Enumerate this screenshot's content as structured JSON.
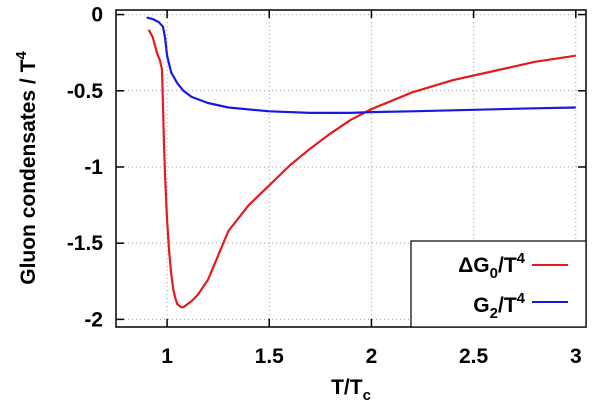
{
  "chart_data": {
    "type": "line",
    "xlabel": "T/T_c",
    "xlabel_main": "T/T",
    "xlabel_sub": "c",
    "ylabel": "Gluon condensates / T^4",
    "ylabel_main": "Gluon condensates / T",
    "ylabel_sup": "4",
    "xlim": [
      0.75,
      3.05
    ],
    "ylim": [
      -2.05,
      0.03
    ],
    "xticks": [
      1,
      1.5,
      2,
      2.5,
      3
    ],
    "xtick_labels": [
      "1",
      "1.5",
      "2",
      "2.5",
      "3"
    ],
    "yticks": [
      0,
      -0.5,
      -1,
      -1.5,
      -2
    ],
    "ytick_labels": [
      "0",
      "-0.5",
      "-1",
      "-1.5",
      "-2"
    ],
    "grid": true,
    "legend": "bottom-right",
    "series": [
      {
        "name": "ΔG0/T4",
        "label_parts": [
          "ΔG",
          "0",
          "/T",
          "4"
        ],
        "color": "#e41a1c",
        "x": [
          0.91,
          0.93,
          0.95,
          0.965,
          0.975,
          0.98,
          0.985,
          0.99,
          1.0,
          1.01,
          1.02,
          1.03,
          1.04,
          1.05,
          1.06,
          1.07,
          1.08,
          1.1,
          1.12,
          1.15,
          1.2,
          1.3,
          1.4,
          1.5,
          1.6,
          1.7,
          1.8,
          1.9,
          2.0,
          2.2,
          2.4,
          2.6,
          2.8,
          3.0
        ],
        "y": [
          -0.1,
          -0.15,
          -0.25,
          -0.3,
          -0.36,
          -0.6,
          -0.85,
          -1.05,
          -1.35,
          -1.55,
          -1.7,
          -1.8,
          -1.86,
          -1.9,
          -1.91,
          -1.92,
          -1.92,
          -1.9,
          -1.88,
          -1.84,
          -1.74,
          -1.42,
          -1.25,
          -1.12,
          -0.99,
          -0.88,
          -0.78,
          -0.69,
          -0.62,
          -0.51,
          -0.43,
          -0.37,
          -0.31,
          -0.27
        ]
      },
      {
        "name": "G2/T4",
        "label_parts": [
          "G",
          "2",
          "/T",
          "4"
        ],
        "color": "#1a1adc",
        "x": [
          0.9,
          0.93,
          0.96,
          0.98,
          0.99,
          1.0,
          1.02,
          1.05,
          1.08,
          1.12,
          1.2,
          1.3,
          1.5,
          1.7,
          1.9,
          2.0,
          2.2,
          2.5,
          2.8,
          3.0
        ],
        "y": [
          -0.02,
          -0.03,
          -0.05,
          -0.08,
          -0.15,
          -0.27,
          -0.38,
          -0.45,
          -0.5,
          -0.54,
          -0.58,
          -0.61,
          -0.635,
          -0.645,
          -0.645,
          -0.64,
          -0.635,
          -0.625,
          -0.615,
          -0.61
        ]
      }
    ]
  }
}
